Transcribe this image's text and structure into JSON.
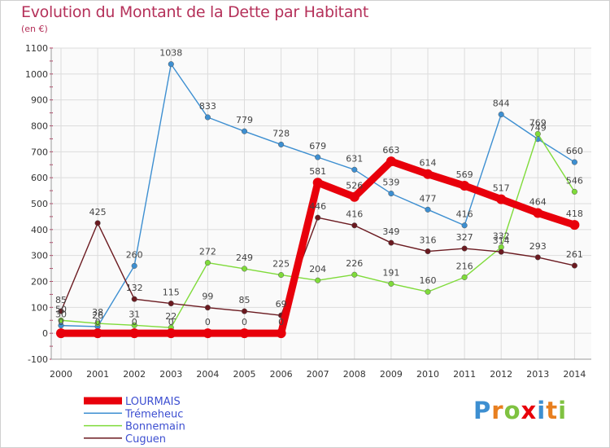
{
  "chart_data": {
    "type": "line",
    "title": "Evolution du Montant de la Dette par Habitant",
    "subtitle": "(en €)",
    "x": [
      "2000",
      "2001",
      "2002",
      "2003",
      "2004",
      "2005",
      "2006",
      "2007",
      "2008",
      "2009",
      "2010",
      "2011",
      "2012",
      "2013",
      "2014"
    ],
    "ylim": [
      -100,
      1100
    ],
    "yticks": [
      -100,
      0,
      100,
      200,
      300,
      400,
      500,
      600,
      700,
      800,
      900,
      1000,
      1100
    ],
    "grid": true,
    "legend_position": "bottom-left",
    "series": [
      {
        "name": "LOURMAIS",
        "color": "#e8000b",
        "values": [
          0,
          0,
          0,
          0,
          0,
          0,
          0,
          581,
          526,
          663,
          614,
          569,
          517,
          464,
          418
        ]
      },
      {
        "name": "Trémeheuc",
        "color": "#3d8fd1",
        "values": [
          30,
          26,
          260,
          1038,
          833,
          779,
          728,
          679,
          631,
          539,
          477,
          416,
          844,
          749,
          660
        ]
      },
      {
        "name": "Bonnemain",
        "color": "#7fdb3a",
        "values": [
          50,
          38,
          31,
          22,
          272,
          249,
          225,
          204,
          226,
          191,
          160,
          216,
          332,
          769,
          546
        ]
      },
      {
        "name": "Cuguen",
        "color": "#6b1a20",
        "values": [
          85,
          425,
          132,
          115,
          99,
          85,
          69,
          446,
          416,
          349,
          316,
          327,
          314,
          293,
          261
        ]
      }
    ]
  },
  "logo": {
    "letters": [
      "P",
      "r",
      "o",
      "x",
      "i",
      "t",
      "i"
    ],
    "colors": [
      "#3d8fd1",
      "#e87f1f",
      "#7fc241",
      "#e8000b",
      "#3d8fd1",
      "#e87f1f",
      "#7fc241"
    ]
  }
}
